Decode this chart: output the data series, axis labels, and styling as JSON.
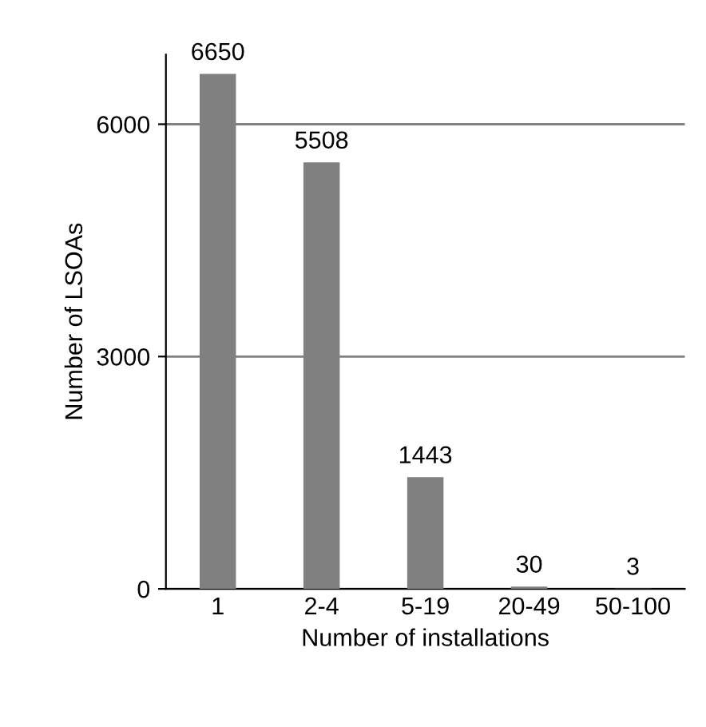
{
  "chart_data": {
    "type": "bar",
    "xlabel": "Number of installations",
    "ylabel": "Number of LSOAs",
    "categories": [
      "1",
      "2-4",
      "5-19",
      "20-49",
      "50-100"
    ],
    "values": [
      6650,
      5508,
      1443,
      30,
      3
    ],
    "color": "#808080",
    "ylim": [
      0,
      6900
    ],
    "yticks": [
      0,
      3000,
      6000
    ],
    "grid": "y",
    "data_labels": true
  }
}
